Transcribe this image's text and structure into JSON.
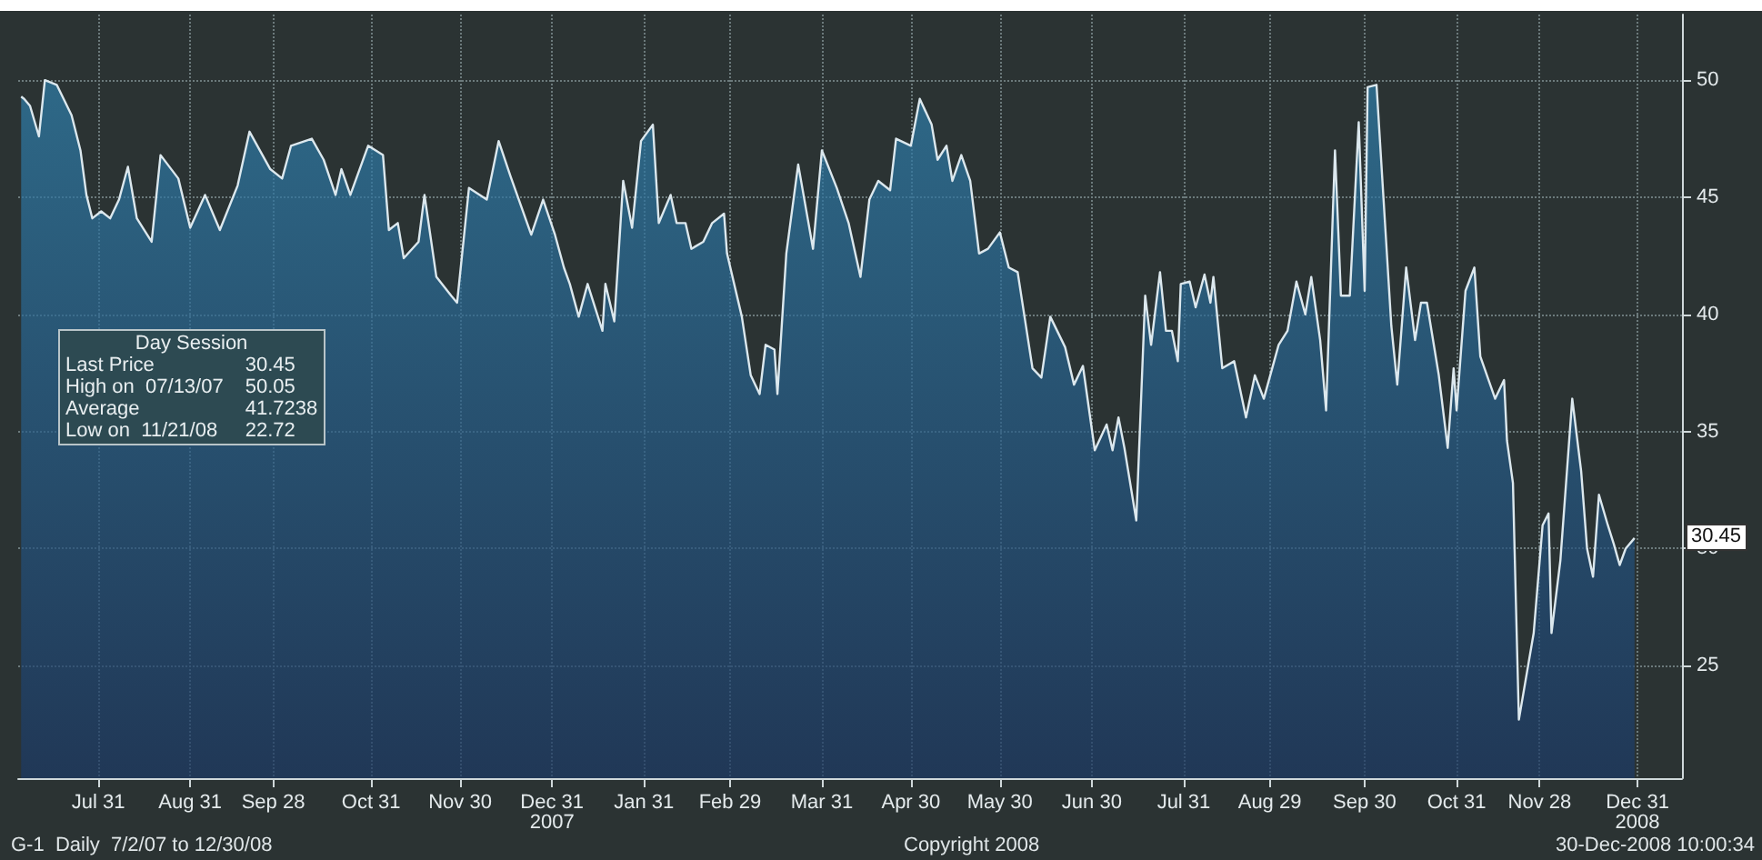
{
  "chart_data": {
    "type": "area",
    "x": [
      "2007-07-05",
      "2007-07-06",
      "2007-07-08",
      "2007-07-11",
      "2007-07-13",
      "2007-07-17",
      "2007-07-22",
      "2007-07-25",
      "2007-07-27",
      "2007-07-29",
      "2007-08-01",
      "2007-08-04",
      "2007-08-07",
      "2007-08-10",
      "2007-08-13",
      "2007-08-18",
      "2007-08-21",
      "2007-08-27",
      "2007-08-31",
      "2007-09-05",
      "2007-09-10",
      "2007-09-16",
      "2007-09-20",
      "2007-09-27",
      "2007-10-01",
      "2007-10-04",
      "2007-10-11",
      "2007-10-15",
      "2007-10-19",
      "2007-10-21",
      "2007-10-24",
      "2007-10-30",
      "2007-11-04",
      "2007-11-06",
      "2007-11-09",
      "2007-11-11",
      "2007-11-16",
      "2007-11-18",
      "2007-11-22",
      "2007-11-27",
      "2007-11-29",
      "2007-12-03",
      "2007-12-09",
      "2007-12-13",
      "2007-12-17",
      "2007-12-24",
      "2007-12-28",
      "2008-01-01",
      "2008-01-04",
      "2008-01-06",
      "2008-01-09",
      "2008-01-12",
      "2008-01-17",
      "2008-01-18",
      "2008-01-21",
      "2008-01-24",
      "2008-01-27",
      "2008-01-30",
      "2008-02-03",
      "2008-02-05",
      "2008-02-09",
      "2008-02-11",
      "2008-02-14",
      "2008-02-16",
      "2008-02-20",
      "2008-02-23",
      "2008-02-27",
      "2008-02-28",
      "2008-03-04",
      "2008-03-07",
      "2008-03-10",
      "2008-03-12",
      "2008-03-15",
      "2008-03-16",
      "2008-03-19",
      "2008-03-23",
      "2008-03-28",
      "2008-03-31",
      "2008-04-05",
      "2008-04-09",
      "2008-04-13",
      "2008-04-16",
      "2008-04-19",
      "2008-04-23",
      "2008-04-25",
      "2008-04-30",
      "2008-05-03",
      "2008-05-07",
      "2008-05-09",
      "2008-05-12",
      "2008-05-14",
      "2008-05-17",
      "2008-05-20",
      "2008-05-23",
      "2008-05-26",
      "2008-05-30",
      "2008-06-02",
      "2008-06-05",
      "2008-06-10",
      "2008-06-13",
      "2008-06-16",
      "2008-06-21",
      "2008-06-24",
      "2008-06-27",
      "2008-07-01",
      "2008-07-05",
      "2008-07-07",
      "2008-07-09",
      "2008-07-11",
      "2008-07-15",
      "2008-07-18",
      "2008-07-20",
      "2008-07-23",
      "2008-07-25",
      "2008-07-27",
      "2008-07-29",
      "2008-07-30",
      "2008-08-02",
      "2008-08-04",
      "2008-08-07",
      "2008-08-09",
      "2008-08-10",
      "2008-08-13",
      "2008-08-17",
      "2008-08-21",
      "2008-08-24",
      "2008-08-27",
      "2008-09-01",
      "2008-09-04",
      "2008-09-07",
      "2008-09-10",
      "2008-09-12",
      "2008-09-15",
      "2008-09-17",
      "2008-09-20",
      "2008-09-22",
      "2008-09-25",
      "2008-09-28",
      "2008-09-30",
      "2008-10-01",
      "2008-10-04",
      "2008-10-09",
      "2008-10-11",
      "2008-10-14",
      "2008-10-17",
      "2008-10-19",
      "2008-10-21",
      "2008-10-25",
      "2008-10-28",
      "2008-10-30",
      "2008-10-31",
      "2008-11-03",
      "2008-11-06",
      "2008-11-08",
      "2008-11-13",
      "2008-11-16",
      "2008-11-17",
      "2008-11-19",
      "2008-11-20",
      "2008-11-21",
      "2008-11-26",
      "2008-11-29",
      "2008-12-01",
      "2008-12-02",
      "2008-12-05",
      "2008-12-09",
      "2008-12-12",
      "2008-12-14",
      "2008-12-16",
      "2008-12-18",
      "2008-12-21",
      "2008-12-23",
      "2008-12-25",
      "2008-12-27",
      "2008-12-30"
    ],
    "series": [
      {
        "color": "#2f7fab",
        "values": [
          49.3,
          49.2,
          48.9,
          47.6,
          50.0,
          49.8,
          48.5,
          47.0,
          45.1,
          44.1,
          44.4,
          44.1,
          44.9,
          46.3,
          44.1,
          43.1,
          46.8,
          45.8,
          43.7,
          45.1,
          43.6,
          45.5,
          47.8,
          46.2,
          45.8,
          47.2,
          47.5,
          46.6,
          45.1,
          46.2,
          45.1,
          47.2,
          46.8,
          43.6,
          43.9,
          42.4,
          43.1,
          45.1,
          41.6,
          40.8,
          40.5,
          45.4,
          44.9,
          47.4,
          45.9,
          43.4,
          44.9,
          43.4,
          42.0,
          41.3,
          39.9,
          41.3,
          39.3,
          41.3,
          39.7,
          45.7,
          43.7,
          47.4,
          48.1,
          43.9,
          45.1,
          43.9,
          43.9,
          42.8,
          43.1,
          43.9,
          44.3,
          42.6,
          39.9,
          37.4,
          36.6,
          38.7,
          38.5,
          36.6,
          42.6,
          46.4,
          42.8,
          47.0,
          45.4,
          43.9,
          41.6,
          44.9,
          45.7,
          45.3,
          47.5,
          47.2,
          49.2,
          48.1,
          46.6,
          47.2,
          45.7,
          46.8,
          45.7,
          42.6,
          42.8,
          43.5,
          42.0,
          41.8,
          37.7,
          37.3,
          39.9,
          38.6,
          37.0,
          37.8,
          34.2,
          35.3,
          34.2,
          35.6,
          34.3,
          31.2,
          40.8,
          38.7,
          41.8,
          39.3,
          39.3,
          38.0,
          41.3,
          41.4,
          40.3,
          41.7,
          40.5,
          41.6,
          37.7,
          38.0,
          35.6,
          37.4,
          36.4,
          38.7,
          39.3,
          41.4,
          40.0,
          41.6,
          38.9,
          35.9,
          47.0,
          40.8,
          40.8,
          48.2,
          41.0,
          49.7,
          49.8,
          39.5,
          37.0,
          42.0,
          38.9,
          40.5,
          40.5,
          37.4,
          34.3,
          37.7,
          35.9,
          41.0,
          42.0,
          38.2,
          36.4,
          37.2,
          34.6,
          32.8,
          27.7,
          22.7,
          26.4,
          31.0,
          31.5,
          26.4,
          29.5,
          36.4,
          33.3,
          30.0,
          28.8,
          32.3,
          31.0,
          30.2,
          29.3,
          30.0,
          30.45
        ]
      }
    ],
    "xlim": [
      "2007-07-04",
      "2009-01-15"
    ],
    "xticks": [
      {
        "value": "2007-07-31",
        "label": "Jul 31"
      },
      {
        "value": "2007-08-31",
        "label": "Aug 31"
      },
      {
        "value": "2007-09-28",
        "label": "Sep 28"
      },
      {
        "value": "2007-10-31",
        "label": "Oct 31"
      },
      {
        "value": "2007-11-30",
        "label": "Nov 30"
      },
      {
        "value": "2007-12-31",
        "label": "Dec 31\n2007"
      },
      {
        "value": "2008-01-31",
        "label": "Jan 31"
      },
      {
        "value": "2008-02-29",
        "label": "Feb 29"
      },
      {
        "value": "2008-03-31",
        "label": "Mar 31"
      },
      {
        "value": "2008-04-30",
        "label": "Apr 30"
      },
      {
        "value": "2008-05-30",
        "label": "May 30"
      },
      {
        "value": "2008-06-30",
        "label": "Jun 30"
      },
      {
        "value": "2008-07-31",
        "label": "Jul 31"
      },
      {
        "value": "2008-08-29",
        "label": "Aug 29"
      },
      {
        "value": "2008-09-30",
        "label": "Sep 30"
      },
      {
        "value": "2008-10-31",
        "label": "Oct 31"
      },
      {
        "value": "2008-11-28",
        "label": "Nov 28"
      },
      {
        "value": "2008-12-31",
        "label": "Dec 31\n2008"
      }
    ],
    "ylim": [
      20.2,
      52.8
    ],
    "yticks": [
      25,
      30,
      35,
      40,
      45,
      50
    ],
    "grid": true,
    "line_style": "solid",
    "annotations": [
      "Day Session",
      "Last Price",
      "30.45",
      "High on  07/13/07",
      "50.05",
      "Average",
      "41.7238",
      "Low on  11/21/08",
      "22.72",
      "G-1  Daily  7/2/07 to 12/30/08",
      "Copyright 2008",
      "30-Dec-2008 10:00:34",
      {
        "text": "30.45",
        "x": "2008-12-30",
        "y": 30.45
      }
    ]
  }
}
